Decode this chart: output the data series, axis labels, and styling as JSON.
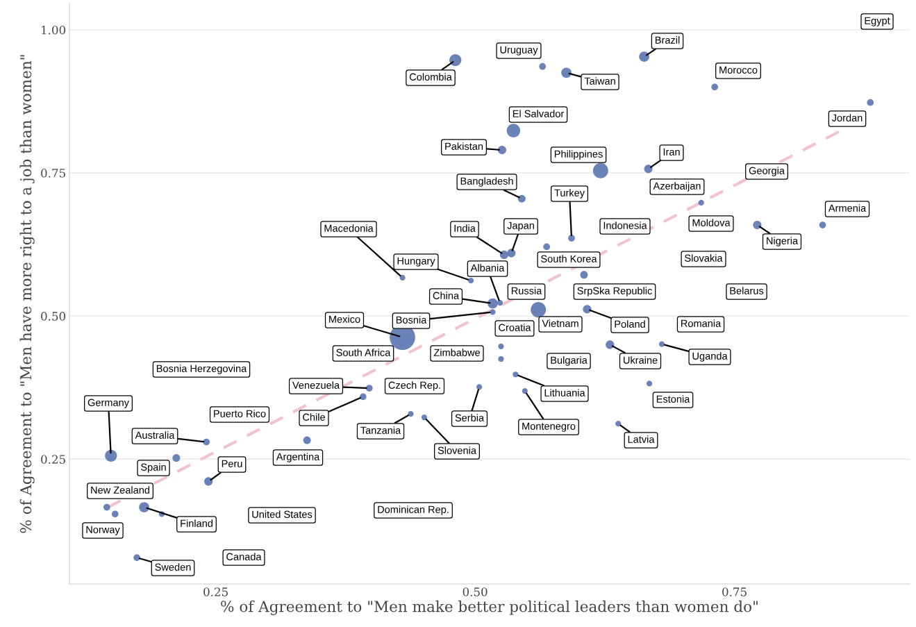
{
  "chart_data": {
    "type": "bubble",
    "xlabel": "% of Agreement to \"Men make better political leaders than women do\"",
    "ylabel": "% of Agreement to \"Men have more right to a job than women\"",
    "xlim": [
      0.109,
      0.919
    ],
    "ylim": [
      0.032,
      1.046
    ],
    "xticks": [
      {
        "value": 0.25,
        "label": "0.25"
      },
      {
        "value": 0.5,
        "label": "0.50"
      },
      {
        "value": 0.75,
        "label": "0.75"
      }
    ],
    "yticks": [
      {
        "value": 0.25,
        "label": "0.25"
      },
      {
        "value": 0.5,
        "label": "0.50"
      },
      {
        "value": 0.75,
        "label": "0.75"
      },
      {
        "value": 1.0,
        "label": "1.00"
      }
    ],
    "grid": "y",
    "legend": false,
    "series": [
      {
        "color": "#5b74b1",
        "x": [
          0.481,
          0.565,
          0.588,
          0.663,
          0.731,
          0.881,
          0.537,
          0.526,
          0.621,
          0.667,
          0.545,
          0.718,
          0.593,
          0.772,
          0.835,
          0.528,
          0.535,
          0.569,
          0.605,
          0.496,
          0.43,
          0.524,
          0.517,
          0.517,
          0.608,
          0.561,
          0.43,
          0.525,
          0.525,
          0.539,
          0.548,
          0.504,
          0.451,
          0.438,
          0.63,
          0.68,
          0.668,
          0.638,
          0.398,
          0.392,
          0.338,
          0.241,
          0.149,
          0.212,
          0.243,
          0.145,
          0.153,
          0.181,
          0.198,
          0.174
        ],
        "values": [
          0.947,
          0.936,
          0.925,
          0.953,
          0.9,
          0.873,
          0.824,
          0.79,
          0.754,
          0.757,
          0.705,
          0.698,
          0.636,
          0.659,
          0.659,
          0.607,
          0.61,
          0.621,
          0.572,
          0.562,
          0.567,
          0.523,
          0.522,
          0.507,
          0.512,
          0.511,
          0.463,
          0.447,
          0.425,
          0.398,
          0.369,
          0.376,
          0.323,
          0.329,
          0.45,
          0.451,
          0.382,
          0.312,
          0.374,
          0.359,
          0.283,
          0.28,
          0.256,
          0.252,
          0.211,
          0.166,
          0.154,
          0.166,
          0.154,
          0.078
        ],
        "sizes": [
          0.22,
          0.07,
          0.16,
          0.16,
          0.07,
          0.07,
          0.28,
          0.11,
          0.36,
          0.11,
          0.09,
          0.05,
          0.07,
          0.11,
          0.07,
          0.11,
          0.11,
          0.07,
          0.09,
          0.05,
          0.05,
          0.05,
          0.16,
          0.05,
          0.11,
          0.36,
          1,
          0.05,
          0.05,
          0.05,
          0.05,
          0.05,
          0.05,
          0.05,
          0.11,
          0.05,
          0.05,
          0.05,
          0.07,
          0.07,
          0.09,
          0.07,
          0.22,
          0.09,
          0.11,
          0.07,
          0.07,
          0.16,
          0.05,
          0.07
        ]
      },
      {
        "type": "line",
        "color": "#f2c2cd",
        "line_style": "dashed",
        "x": [
          0.146,
          0.855
        ],
        "values": [
          0.166,
          0.826
        ]
      }
    ],
    "annotations": [
      {
        "text": "Colombia",
        "x": 0.481,
        "y": 0.947
      },
      {
        "text": "Uruguay",
        "x": 0.565,
        "y": 0.936
      },
      {
        "text": "Taiwan",
        "x": 0.588,
        "y": 0.925
      },
      {
        "text": "Brazil",
        "x": 0.663,
        "y": 0.953
      },
      {
        "text": "Morocco",
        "x": 0.731,
        "y": 0.9
      },
      {
        "text": "Jordan",
        "x": 0.881,
        "y": 0.873
      },
      "Egypt",
      {
        "text": "El Salvador",
        "x": 0.537,
        "y": 0.824
      },
      {
        "text": "Pakistan",
        "x": 0.526,
        "y": 0.79
      },
      {
        "text": "Philippines",
        "x": 0.621,
        "y": 0.754
      },
      {
        "text": "Iran",
        "x": 0.667,
        "y": 0.757
      },
      {
        "text": "Bangladesh",
        "x": 0.545,
        "y": 0.705
      },
      {
        "text": "Azerbaijan",
        "x": 0.718,
        "y": 0.698
      },
      {
        "text": "Turkey",
        "x": 0.593,
        "y": 0.636
      },
      "Georgia",
      {
        "text": "Armenia",
        "x": 0.835,
        "y": 0.659
      },
      {
        "text": "Nigeria",
        "x": 0.772,
        "y": 0.659
      },
      "Moldova",
      {
        "text": "Macedonia",
        "x": 0.43,
        "y": 0.567
      },
      {
        "text": "India",
        "x": 0.528,
        "y": 0.607
      },
      {
        "text": "Japan",
        "x": 0.535,
        "y": 0.61
      },
      "Indonesia",
      {
        "text": "Hungary",
        "x": 0.496,
        "y": 0.562
      },
      {
        "text": "Albania",
        "x": 0.524,
        "y": 0.523
      },
      {
        "text": "South Korea",
        "x": 0.605,
        "y": 0.572
      },
      "Slovakia",
      {
        "text": "China",
        "x": 0.517,
        "y": 0.522
      },
      "Russia",
      "SrpSka Republic",
      "Belarus",
      {
        "text": "Mexico",
        "x": 0.43,
        "y": 0.463
      },
      {
        "text": "Bosnia",
        "x": 0.517,
        "y": 0.507
      },
      "Croatia",
      {
        "text": "Vietnam",
        "x": 0.561,
        "y": 0.511
      },
      {
        "text": "Poland",
        "x": 0.608,
        "y": 0.512
      },
      "Romania",
      "South Africa",
      "Zimbabwe",
      "Bulgaria",
      {
        "text": "Ukraine",
        "x": 0.63,
        "y": 0.45
      },
      {
        "text": "Uganda",
        "x": 0.68,
        "y": 0.451
      },
      "Bosnia Herzegovina",
      {
        "text": "Venezuela",
        "x": 0.398,
        "y": 0.374
      },
      "Czech Rep.",
      {
        "text": "Lithuania",
        "x": 0.539,
        "y": 0.398
      },
      {
        "text": "Estonia",
        "x": 0.668,
        "y": 0.382
      },
      {
        "text": "Germany",
        "x": 0.149,
        "y": 0.256
      },
      "Puerto Rico",
      {
        "text": "Chile",
        "x": 0.392,
        "y": 0.359
      },
      {
        "text": "Tanzania",
        "x": 0.438,
        "y": 0.329
      },
      {
        "text": "Serbia",
        "x": 0.504,
        "y": 0.376
      },
      {
        "text": "Montenegro",
        "x": 0.548,
        "y": 0.369
      },
      {
        "text": "Latvia",
        "x": 0.638,
        "y": 0.312
      },
      {
        "text": "Australia",
        "x": 0.241,
        "y": 0.28
      },
      {
        "text": "Slovenia",
        "x": 0.451,
        "y": 0.323
      },
      {
        "text": "Argentina",
        "x": 0.338,
        "y": 0.283
      },
      {
        "text": "Spain",
        "x": 0.212,
        "y": 0.252
      },
      {
        "text": "Peru",
        "x": 0.243,
        "y": 0.211
      },
      {
        "text": "New Zealand",
        "x": 0.145,
        "y": 0.166
      },
      "United States",
      "Dominican Rep.",
      {
        "text": "Norway",
        "x": 0.153,
        "y": 0.154
      },
      {
        "text": "Finland",
        "x": 0.181,
        "y": 0.166
      },
      "Canada",
      {
        "text": "Sweden",
        "x": 0.174,
        "y": 0.078
      }
    ]
  }
}
